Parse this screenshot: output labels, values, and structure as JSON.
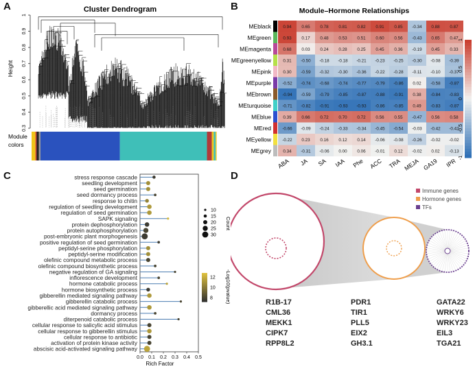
{
  "panels": {
    "a": "A",
    "b": "B",
    "c": "C",
    "d": "D"
  },
  "colors": {
    "heat_low": "#2a6db5",
    "heat_mid": "#f2f2f0",
    "heat_high": "#c93a2b",
    "immune": "#c2476a",
    "hormone": "#ef9e4b",
    "tfs": "#6a3f8f",
    "lollipop_low": "#303030",
    "lollipop_high": "#e1c33e"
  },
  "chart_data": [
    {
      "type": "dendrogram",
      "title": "Cluster Dendrogram",
      "ylabel": "Height",
      "ylim": [
        0.3,
        1.0
      ],
      "yticks": [
        "0.3",
        "0.4",
        "0.5",
        "0.6",
        "0.7",
        "0.8",
        "0.9",
        "1"
      ],
      "color_bar_label": "Module colors",
      "modules": [
        {
          "color": "#f0c419",
          "fraction": 0.02
        },
        {
          "color": "#d33c2c",
          "fraction": 0.006
        },
        {
          "color": "#222222",
          "fraction": 0.012
        },
        {
          "color": "#9a9a9a",
          "fraction": 0.008
        },
        {
          "color": "#2a52be",
          "fraction": 0.41
        },
        {
          "color": "#3fbfb8",
          "fraction": 0.45
        },
        {
          "color": "#b03a3a",
          "fraction": 0.025
        },
        {
          "color": "#f0c419",
          "fraction": 0.01
        },
        {
          "color": "#3fbfb8",
          "fraction": 0.01
        },
        {
          "color": "#f0c419",
          "fraction": 0.005
        }
      ]
    },
    {
      "type": "heatmap",
      "title": "Module–Hormone Relationships",
      "rows": [
        "MEblack",
        "MEgreen",
        "MEmagenta",
        "MEgreenyellow",
        "MEpink",
        "MEpurple",
        "MEbrown",
        "MEturquoise",
        "MEblue",
        "MEred",
        "MEyellow",
        "MEgrey"
      ],
      "row_colors": [
        "#000000",
        "#5cb85c",
        "#b8489a",
        "#b5e04a",
        "#f2b8c6",
        "#7a3aa8",
        "#8b5a2b",
        "#40d0c8",
        "#2b50d0",
        "#d23030",
        "#f2e040",
        "#bdbdbd"
      ],
      "columns": [
        "ABA",
        "JA",
        "SA",
        "IAA",
        "Phe",
        "ACC",
        "TRA",
        "MEJA",
        "GA19",
        "IPR"
      ],
      "values": [
        [
          0.94,
          0.65,
          0.78,
          0.81,
          0.82,
          0.91,
          0.85,
          -0.34,
          0.88,
          0.87
        ],
        [
          0.93,
          0.17,
          0.48,
          0.53,
          0.51,
          0.6,
          0.56,
          -0.43,
          0.65,
          0.47
        ],
        [
          0.68,
          0.03,
          0.24,
          0.28,
          0.25,
          0.45,
          0.36,
          -0.19,
          0.45,
          0.33
        ],
        [
          0.31,
          -0.5,
          -0.18,
          -0.18,
          -0.21,
          -0.23,
          -0.25,
          -0.3,
          -0.08,
          -0.39
        ],
        [
          0.3,
          -0.59,
          -0.32,
          -0.3,
          -0.36,
          -0.22,
          -0.28,
          -0.11,
          -0.1,
          -0.37
        ],
        [
          -0.52,
          -0.74,
          -0.68,
          -0.74,
          -0.77,
          -0.79,
          -0.86,
          0.02,
          -0.58,
          -0.87
        ],
        [
          -0.94,
          -0.59,
          -0.79,
          -0.85,
          -0.87,
          -0.88,
          -0.91,
          0.38,
          -0.84,
          -0.83
        ],
        [
          -0.71,
          -0.82,
          -0.91,
          -0.93,
          -0.93,
          -0.86,
          -0.85,
          0.49,
          -0.83,
          -0.87
        ],
        [
          0.39,
          0.66,
          0.72,
          0.7,
          0.72,
          0.56,
          0.55,
          -0.47,
          0.56,
          0.58
        ],
        [
          -0.66,
          -0.09,
          -0.24,
          -0.33,
          -0.34,
          -0.45,
          -0.54,
          -0.03,
          -0.42,
          -0.42
        ],
        [
          -0.22,
          0.23,
          0.16,
          0.12,
          0.14,
          -0.06,
          -0.08,
          -0.26,
          -0.02,
          -0.02
        ],
        [
          0.34,
          -0.31,
          -0.06,
          0.0,
          0.06,
          -0.01,
          0.12,
          -0.02,
          0.02,
          -0.13
        ]
      ],
      "value_labels": [
        [
          "0.94",
          "0.65",
          "0.78",
          "0.81",
          "0.82",
          "0.91",
          "0.85",
          "-0.34",
          "0.88",
          "0.87"
        ],
        [
          "0.93",
          "0.17",
          "0.48",
          "0.53",
          "0.51",
          "0.60",
          "0.56",
          "-0.43",
          "0.65",
          "0.47"
        ],
        [
          "0.68",
          "0.03",
          "0.24",
          "0.28",
          "0.25",
          "0.45",
          "0.36",
          "-0.19",
          "0.45",
          "0.33"
        ],
        [
          "0.31",
          "-0.50",
          "-0.18",
          "-0.18",
          "-0.21",
          "-0.23",
          "-0.25",
          "-0.30",
          "-0.08",
          "-0.39"
        ],
        [
          "0.30",
          "-0.59",
          "-0.32",
          "-0.30",
          "-0.36",
          "-0.22",
          "-0.28",
          "-0.11",
          "-0.10",
          "-0.37"
        ],
        [
          "-0.52",
          "-0.74",
          "-0.68",
          "-0.74",
          "-0.77",
          "-0.79",
          "-0.86",
          "0.02",
          "-0.58",
          "-0.87"
        ],
        [
          "-0.94",
          "-0.59",
          "-0.79",
          "-0.85",
          "-0.87",
          "-0.88",
          "-0.91",
          "0.38",
          "-0.84",
          "-0.83"
        ],
        [
          "-0.71",
          "-0.82",
          "-0.91",
          "-0.93",
          "-0.93",
          "-0.86",
          "-0.85",
          "0.49",
          "-0.83",
          "-0.87"
        ],
        [
          "0.39",
          "0.66",
          "0.72",
          "0.70",
          "0.72",
          "0.56",
          "0.55",
          "-0.47",
          "0.56",
          "0.58"
        ],
        [
          "-0.66",
          "-0.09",
          "-0.24",
          "-0.33",
          "-0.34",
          "-0.45",
          "-0.54",
          "-0.03",
          "-0.42",
          "-0.42"
        ],
        [
          "-0.22",
          "0.23",
          "0.16",
          "0.12",
          "0.14",
          "-0.06",
          "-0.08",
          "-0.26",
          "-0.02",
          "-0.02"
        ],
        [
          "0.34",
          "-0.31",
          "-0.06",
          "0.00",
          "0.06",
          "-0.01",
          "0.12",
          "-0.02",
          "0.02",
          "-0.13"
        ]
      ],
      "colorbar_ticks": [
        "1",
        "0.5",
        "0",
        "-0.5",
        "-1"
      ],
      "range": [
        -1,
        1
      ]
    },
    {
      "type": "lollipop",
      "xlabel": "Rich Factor",
      "xlim": [
        0,
        0.5
      ],
      "xticks": [
        "0.0",
        "0.1",
        "0.2",
        "0.3",
        "0.4",
        "0.5"
      ],
      "terms": [
        {
          "label": "stress response cascade",
          "rich": 0.12,
          "count": 15,
          "logp": 6.5
        },
        {
          "label": "seedling development",
          "rich": 0.07,
          "count": 20,
          "logp": 10.5
        },
        {
          "label": "seed germination",
          "rich": 0.07,
          "count": 20,
          "logp": 10.5
        },
        {
          "label": "seed dormancy process",
          "rich": 0.13,
          "count": 12,
          "logp": 7
        },
        {
          "label": "response to chitin",
          "rich": 0.06,
          "count": 18,
          "logp": 10
        },
        {
          "label": "regulation of seedling development",
          "rich": 0.08,
          "count": 22,
          "logp": 11
        },
        {
          "label": "regulation of seed germination",
          "rich": 0.08,
          "count": 22,
          "logp": 11
        },
        {
          "label": "SAPK signaling",
          "rich": 0.24,
          "count": 10,
          "logp": 12.5
        },
        {
          "label": "protein dephosphorylation",
          "rich": 0.06,
          "count": 22,
          "logp": 6.5
        },
        {
          "label": "protein autophosphorylation",
          "rich": 0.05,
          "count": 25,
          "logp": 7
        },
        {
          "label": "post-embryonic plant morphogenesis",
          "rich": 0.04,
          "count": 30,
          "logp": 6.5
        },
        {
          "label": "positive regulation of seed germination",
          "rich": 0.16,
          "count": 12,
          "logp": 6.5
        },
        {
          "label": "peptidyl-serine phosphorylation",
          "rich": 0.07,
          "count": 20,
          "logp": 10.5
        },
        {
          "label": "peptidyl-serine modification",
          "rich": 0.07,
          "count": 20,
          "logp": 10.5
        },
        {
          "label": "olefinic compound metabolic process",
          "rich": 0.07,
          "count": 20,
          "logp": 7
        },
        {
          "label": "olefinic compound biosynthetic process",
          "rich": 0.13,
          "count": 12,
          "logp": 7
        },
        {
          "label": "negative regulation of GA signaling",
          "rich": 0.3,
          "count": 10,
          "logp": 7
        },
        {
          "label": "inflorescence development",
          "rich": 0.16,
          "count": 12,
          "logp": 7
        },
        {
          "label": "hormone catabolic process",
          "rich": 0.23,
          "count": 10,
          "logp": 11.5
        },
        {
          "label": "hormone biosynthetic process",
          "rich": 0.07,
          "count": 18,
          "logp": 6.5
        },
        {
          "label": "gibberellin mediated signaling pathway",
          "rich": 0.08,
          "count": 22,
          "logp": 11
        },
        {
          "label": "gibberellin catabolic process",
          "rich": 0.35,
          "count": 10,
          "logp": 7
        },
        {
          "label": "gibberellic acid mediated signaling pathway",
          "rich": 0.08,
          "count": 22,
          "logp": 11
        },
        {
          "label": "dormancy process",
          "rich": 0.13,
          "count": 12,
          "logp": 7
        },
        {
          "label": "diterpenoid catabolic process",
          "rich": 0.33,
          "count": 10,
          "logp": 7
        },
        {
          "label": "cellular response to salicylic acid stimulus",
          "rich": 0.08,
          "count": 20,
          "logp": 7
        },
        {
          "label": "cellular response to gibberellin stimulus",
          "rich": 0.08,
          "count": 22,
          "logp": 11
        },
        {
          "label": "cellular response to antibiotic",
          "rich": 0.08,
          "count": 20,
          "logp": 7
        },
        {
          "label": "activation of protein kinase activity",
          "rich": 0.08,
          "count": 20,
          "logp": 7
        },
        {
          "label": "abscisic acid-activated signaling pathway",
          "rich": 0.06,
          "count": 30,
          "logp": 11.5
        }
      ],
      "size_legend_title": "Count",
      "size_legend": [
        "10",
        "15",
        "20",
        "25",
        "30"
      ],
      "color_legend_title": "-Log10(pvalue)",
      "color_legend_ticks": [
        "12",
        "10",
        "8"
      ]
    }
  ],
  "network": {
    "legend": [
      {
        "label": "Immune genes",
        "color": "#c2476a"
      },
      {
        "label": "Hormone genes",
        "color": "#ef9e4b"
      },
      {
        "label": "TFs",
        "color": "#6a3f8f"
      }
    ],
    "gene_columns": [
      [
        "R1B-17",
        "CML36",
        "MEKK1",
        "CIPK7",
        "RPP8L2"
      ],
      [
        "PDR1",
        "TIR1",
        "PLL5",
        "EIX2",
        "GH3.1"
      ],
      [
        "GATA22",
        "WRKY6",
        "WRKY23",
        "EIL3",
        "TGA21"
      ]
    ]
  }
}
